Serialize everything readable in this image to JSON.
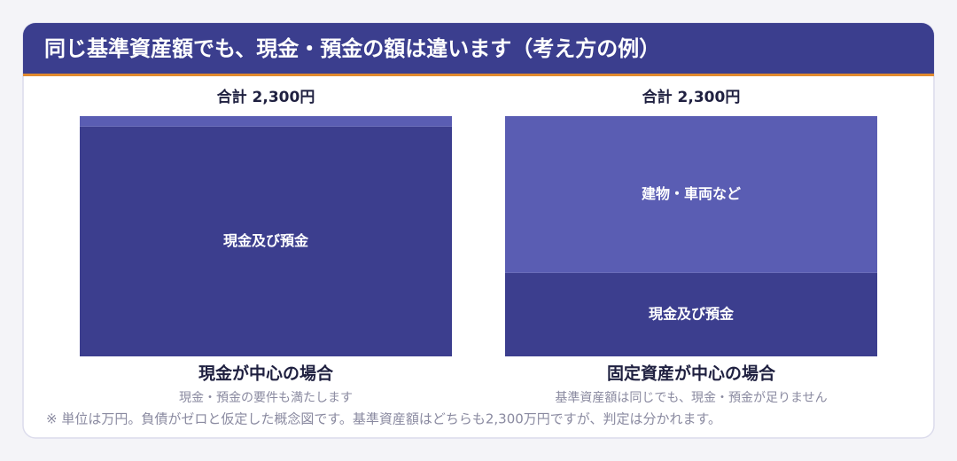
{
  "header": {
    "title": "同じ基準資産額でも、現金・預金の額は違います（考え方の例）"
  },
  "panels": [
    {
      "total": "合計 2,300円",
      "segments": [
        {
          "name": "現金及び預金",
          "value": 2200,
          "color": "#3c3e8e"
        },
        {
          "name": null,
          "value": 100,
          "color": "#5a5db3"
        }
      ],
      "caption": "現金が中心の場合",
      "note": "現金・預金の要件も満たします"
    },
    {
      "total": "合計 2,300円",
      "segments": [
        {
          "name": "現金及び預金",
          "value": 800,
          "color": "#3c3e8e"
        },
        {
          "name": "建物・車両など",
          "value": 1500,
          "color": "#5a5db3"
        }
      ],
      "caption": "固定資産が中心の場合",
      "note": "基準資産額は同じでも、現金・預金が足りません"
    }
  ],
  "footnote": "※ 単位は万円。負債がゼロと仮定した概念図です。基準資産額はどちらも2,300万円ですが、判定は分かれます。"
}
